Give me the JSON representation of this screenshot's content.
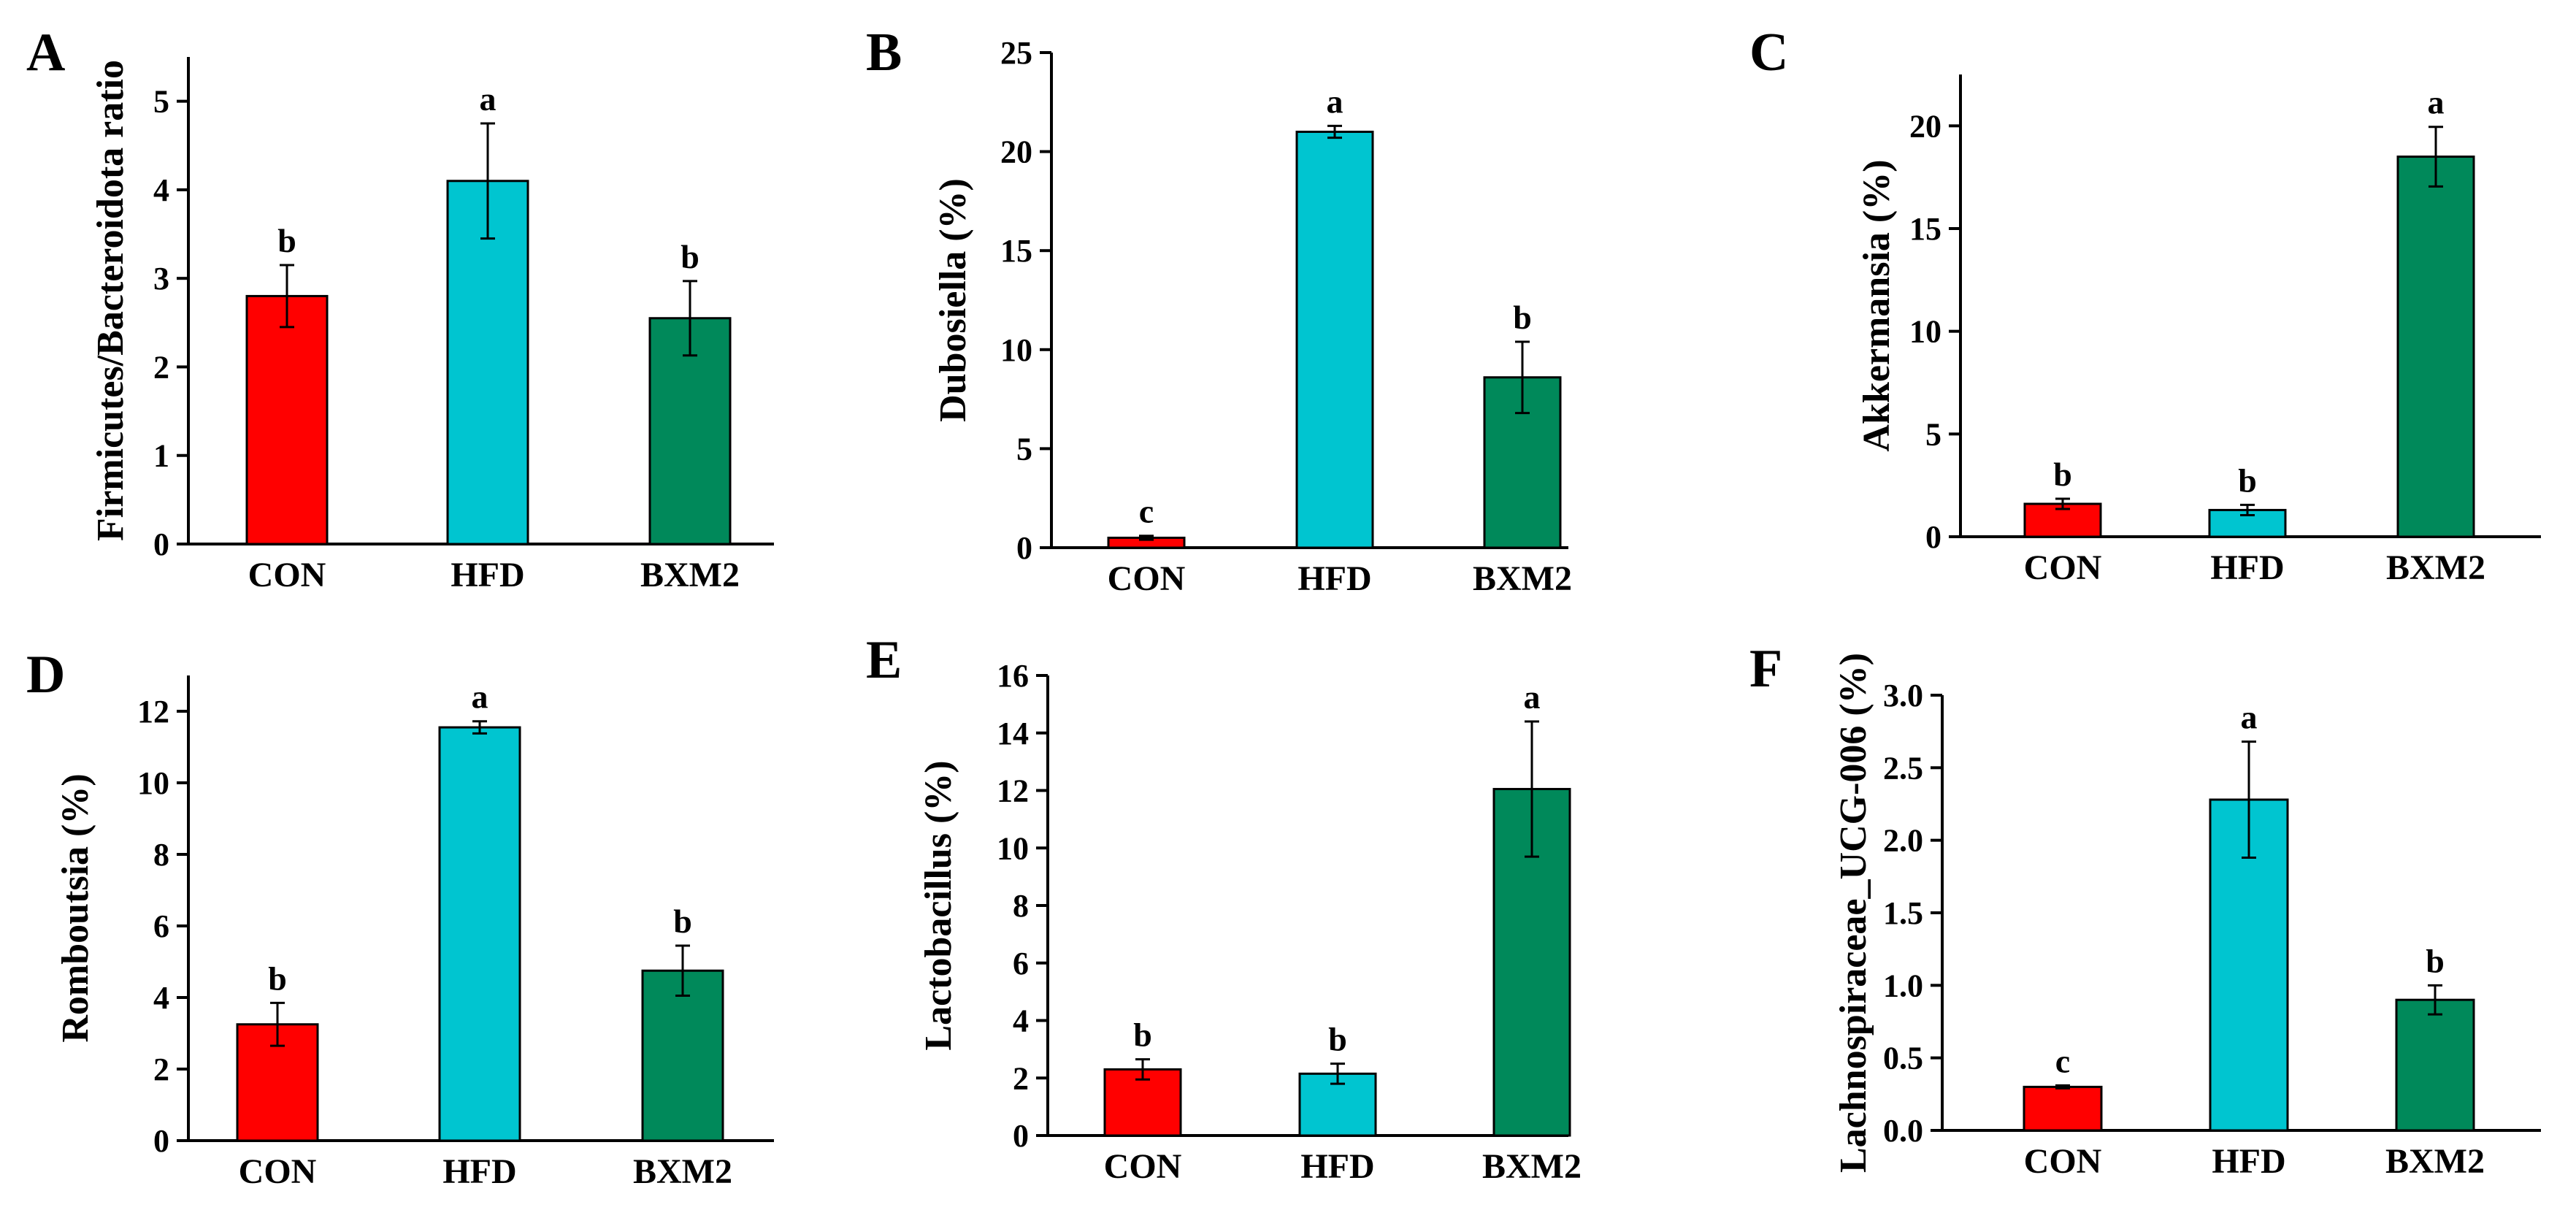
{
  "figure": {
    "colors": {
      "CON": "#ff0000",
      "HFD": "#00c5d0",
      "BXM2": "#00895a",
      "axis": "#000000"
    }
  },
  "chart_data": [
    {
      "panel": "A",
      "type": "bar",
      "categories": [
        "CON",
        "HFD",
        "BXM2"
      ],
      "values": [
        2.8,
        4.1,
        2.55
      ],
      "errors": [
        0.35,
        0.65,
        0.42
      ],
      "significance": [
        "b",
        "a",
        "b"
      ],
      "ylabel": "Firmicutes/Bacteroidota ratio",
      "ylim": [
        0,
        5.5
      ],
      "yticks": [
        "0",
        "1",
        "2",
        "3",
        "4",
        "5"
      ]
    },
    {
      "panel": "B",
      "type": "bar",
      "categories": [
        "CON",
        "HFD",
        "BXM2"
      ],
      "values": [
        0.5,
        21.0,
        8.6
      ],
      "errors": [
        0.1,
        0.3,
        1.8
      ],
      "significance": [
        "c",
        "a",
        "b"
      ],
      "ylabel": "Dubosiella (%)",
      "ylim": [
        0,
        25
      ],
      "yticks": [
        "0",
        "5",
        "10",
        "15",
        "20",
        "25"
      ]
    },
    {
      "panel": "C",
      "type": "bar",
      "categories": [
        "CON",
        "HFD",
        "BXM2"
      ],
      "values": [
        1.6,
        1.3,
        18.5
      ],
      "errors": [
        0.25,
        0.25,
        1.45
      ],
      "significance": [
        "b",
        "b",
        "a"
      ],
      "ylabel": "Akkermansia (%)",
      "ylim": [
        0,
        22.5
      ],
      "yticks": [
        "0",
        "5",
        "10",
        "15",
        "20"
      ]
    },
    {
      "panel": "D",
      "type": "bar",
      "categories": [
        "CON",
        "HFD",
        "BXM2"
      ],
      "values": [
        3.25,
        11.55,
        4.75
      ],
      "errors": [
        0.6,
        0.17,
        0.7
      ],
      "significance": [
        "b",
        "a",
        "b"
      ],
      "ylabel": "Romboutsia (%)",
      "ylim": [
        0,
        13
      ],
      "yticks": [
        "0",
        "2",
        "4",
        "6",
        "8",
        "10",
        "12"
      ]
    },
    {
      "panel": "E",
      "type": "bar",
      "categories": [
        "CON",
        "HFD",
        "BXM2"
      ],
      "values": [
        2.3,
        2.15,
        12.05
      ],
      "errors": [
        0.35,
        0.35,
        2.35
      ],
      "significance": [
        "b",
        "b",
        "a"
      ],
      "ylabel": "Lactobacillus (%)",
      "ylim": [
        0,
        16
      ],
      "yticks": [
        "0",
        "2",
        "4",
        "6",
        "8",
        "10",
        "12",
        "14",
        "16"
      ]
    },
    {
      "panel": "F",
      "type": "bar",
      "categories": [
        "CON",
        "HFD",
        "BXM2"
      ],
      "values": [
        0.3,
        2.28,
        0.9
      ],
      "errors": [
        0.01,
        0.4,
        0.1
      ],
      "significance": [
        "c",
        "a",
        "b"
      ],
      "ylabel": "Lachnospiraceae_UCG-006 (%)",
      "ylim": [
        0,
        3.0
      ],
      "yticks": [
        "0.0",
        "0.5",
        "1.0",
        "1.5",
        "2.0",
        "2.5",
        "3.0"
      ]
    }
  ]
}
